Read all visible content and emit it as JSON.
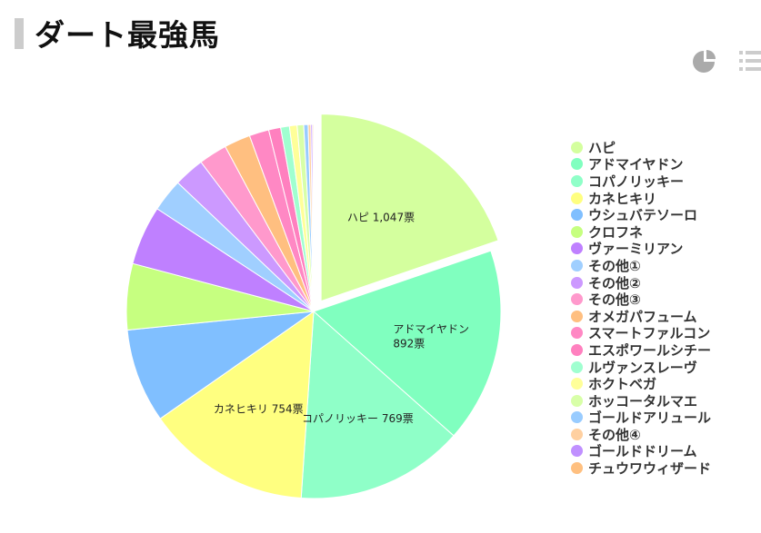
{
  "title": "ダート最強馬",
  "toolbar": {
    "pie_icon": "pie-chart-icon",
    "list_icon": "list-icon"
  },
  "chart_data": {
    "type": "pie",
    "title": "ダート最強馬",
    "unit": "票",
    "series": [
      {
        "name": "ハピ",
        "value": 1047,
        "color": "#d4ff9e"
      },
      {
        "name": "アドマイヤドン",
        "value": 892,
        "color": "#80ffbf"
      },
      {
        "name": "コパノリッキー",
        "value": 769,
        "color": "#8fffc8"
      },
      {
        "name": "カネヒキリ",
        "value": 754,
        "color": "#ffff80"
      },
      {
        "name": "ウシュバテソーロ",
        "value": 431,
        "color": "#80bfff"
      },
      {
        "name": "クロフネ",
        "value": 303,
        "color": "#c6ff80"
      },
      {
        "name": "ヴァーミリアン",
        "value": 272,
        "color": "#bf80ff"
      },
      {
        "name": "その他①",
        "value": 150,
        "color": "#a0cfff"
      },
      {
        "name": "その他②",
        "value": 140,
        "color": "#cc99ff"
      },
      {
        "name": "その他③",
        "value": 130,
        "color": "#ff99cc"
      },
      {
        "name": "オメガパフューム",
        "value": 120,
        "color": "#ffbf80"
      },
      {
        "name": "スマートファルコン",
        "value": 90,
        "color": "#ff88c4"
      },
      {
        "name": "エスポワールシチー",
        "value": 55,
        "color": "#ff80bf"
      },
      {
        "name": "ルヴァンスレーヴ",
        "value": 40,
        "color": "#a0ffd0"
      },
      {
        "name": "ホクトベガ",
        "value": 35,
        "color": "#ffff99"
      },
      {
        "name": "ホッコータルマエ",
        "value": 30,
        "color": "#d8ffa8"
      },
      {
        "name": "ゴールドアリュール",
        "value": 20,
        "color": "#99ccff"
      },
      {
        "name": "その他④",
        "value": 12,
        "color": "#ffd0a0"
      },
      {
        "name": "ゴールドドリーム",
        "value": 8,
        "color": "#c090ff"
      },
      {
        "name": "チュウワウィザード",
        "value": 5,
        "color": "#ffc080"
      }
    ],
    "data_labels": [
      {
        "series": "ハピ",
        "text": "ハピ 1,047票"
      },
      {
        "series": "アドマイヤドン",
        "text": "アドマイヤドン",
        "text2": "892票"
      },
      {
        "series": "コパノリッキー",
        "text": "コパノリッキー 769票"
      },
      {
        "series": "カネヒキリ",
        "text": "カネヒキリ 754票"
      }
    ],
    "exploded": "ハピ",
    "legend_position": "right"
  }
}
